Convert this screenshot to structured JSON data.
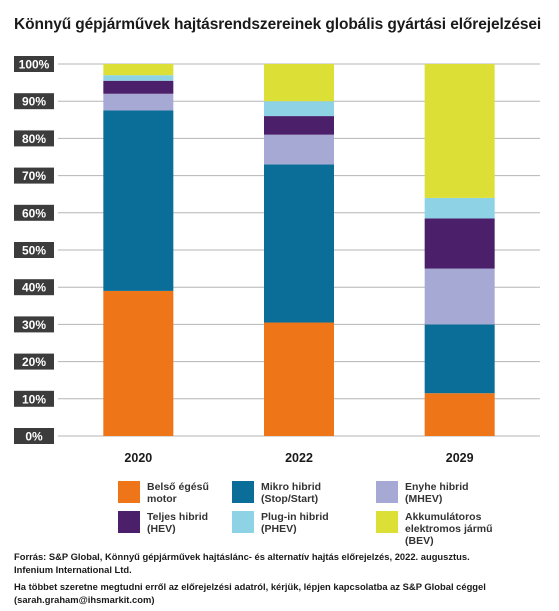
{
  "chart_data": {
    "type": "bar",
    "stacked": true,
    "title": "Könnyű gépjárművek hajtásrendszereinek globális gyártási előrejelzései",
    "categories": [
      "2020",
      "2022",
      "2029"
    ],
    "ylim": [
      0,
      100
    ],
    "yticks": [
      "0%",
      "10%",
      "20%",
      "30%",
      "40%",
      "50%",
      "60%",
      "70%",
      "80%",
      "90%",
      "100%"
    ],
    "grid": true,
    "legend_position": "bottom",
    "series": [
      {
        "name": "Belső égésű\nmotor",
        "color": "#ee7518",
        "values": [
          39,
          30.5,
          11.5
        ]
      },
      {
        "name": "Mikro hibrid\n(Stop/Start)",
        "color": "#0b6e98",
        "values": [
          48.5,
          42.5,
          18.5
        ]
      },
      {
        "name": "Enyhe hibrid\n(MHEV)",
        "color": "#a7a9d5",
        "values": [
          4.5,
          8,
          15
        ]
      },
      {
        "name": "Teljes hibrid\n(HEV)",
        "color": "#4b1f6a",
        "values": [
          3.5,
          5,
          13.5
        ]
      },
      {
        "name": "Plug-in hibrid\n(PHEV)",
        "color": "#8dd3e5",
        "values": [
          1.5,
          4,
          5.5
        ]
      },
      {
        "name": "Akkumulátoros\nelektromos jármű (BEV)",
        "color": "#dcdf36",
        "values": [
          3,
          10,
          36
        ]
      }
    ]
  },
  "footer": {
    "source": "Forrás: S&P Global, Könnyű gépjárművek hajtáslánc- és alternatív hajtás előrejelzés, 2022. augusztus.",
    "source2": "Infenium International Ltd.",
    "contact": "Ha többet szeretne megtudni erről az előrejelzési adatról, kérjük, lépjen kapcsolatba az S&P Global céggel",
    "email": "(sarah.graham@ihsmarkit.com)"
  }
}
